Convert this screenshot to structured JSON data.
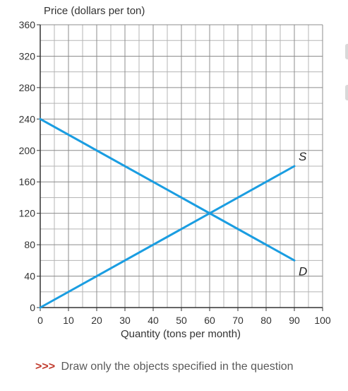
{
  "chart_data": {
    "type": "line",
    "title": "",
    "ylabel": "Price (dollars per ton)",
    "xlabel": "Quantity (tons per month)",
    "xlim": [
      0,
      100
    ],
    "ylim": [
      0,
      360
    ],
    "grid": true,
    "x_ticks": [
      "0",
      "10",
      "20",
      "30",
      "40",
      "50",
      "60",
      "70",
      "80",
      "90",
      "100"
    ],
    "y_ticks": [
      "0",
      "40",
      "80",
      "120",
      "160",
      "200",
      "240",
      "280",
      "320",
      "360"
    ],
    "series": [
      {
        "name": "S",
        "color": "#1a9de1",
        "x": [
          0,
          90
        ],
        "y": [
          0,
          180
        ]
      },
      {
        "name": "D",
        "color": "#1a9de1",
        "x": [
          0,
          90
        ],
        "y": [
          240,
          60
        ]
      }
    ]
  },
  "instruction": {
    "prefix": ">>>",
    "text": "Draw only the objects specified in the question"
  }
}
